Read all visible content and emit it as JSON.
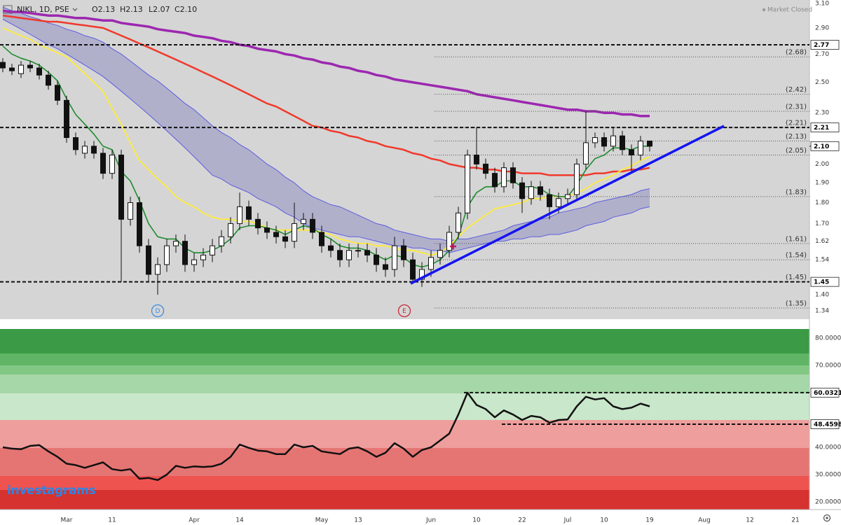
{
  "header": {
    "symbol": "NIKL, 1D, PSE",
    "ohlc": [
      "O2.13",
      "H2.13",
      "L2.07",
      "C2.10"
    ],
    "status": "Market Closed"
  },
  "watermark": "investagrams",
  "markers": [
    "D",
    "E"
  ],
  "chart_data": {
    "type": "candlestick",
    "log_scale": true,
    "categories": [
      null,
      null,
      null,
      null,
      null,
      null,
      null,
      "Mar",
      null,
      null,
      null,
      null,
      "11",
      null,
      null,
      null,
      null,
      null,
      null,
      null,
      null,
      "Apr",
      null,
      null,
      null,
      null,
      "14",
      null,
      null,
      null,
      null,
      null,
      null,
      null,
      null,
      "May",
      null,
      null,
      null,
      "13",
      null,
      null,
      null,
      null,
      null,
      null,
      null,
      "Jun",
      null,
      null,
      null,
      null,
      "10",
      null,
      null,
      null,
      null,
      "22",
      null,
      null,
      null,
      null,
      "Jul",
      null,
      null,
      null,
      "10",
      null,
      null,
      null,
      null,
      "19",
      null,
      null,
      null,
      null,
      null,
      "Aug",
      null,
      null,
      null,
      null,
      "12",
      null,
      null,
      null,
      null,
      "21"
    ],
    "open": [
      2.64,
      2.6,
      2.56,
      2.62,
      2.6,
      2.55,
      2.48,
      2.38,
      2.15,
      2.06,
      2.1,
      2.06,
      1.95,
      2.05,
      1.72,
      1.8,
      1.6,
      1.48,
      1.52,
      1.6,
      1.62,
      1.52,
      1.54,
      1.56,
      1.6,
      1.64,
      1.7,
      1.78,
      1.72,
      1.68,
      1.66,
      1.64,
      1.62,
      1.7,
      1.72,
      1.66,
      1.6,
      1.58,
      1.54,
      1.58,
      1.58,
      1.56,
      1.52,
      1.5,
      1.6,
      1.54,
      1.46,
      1.5,
      1.55,
      1.58,
      1.66,
      1.75,
      2.05,
      2.0,
      1.95,
      1.88,
      1.98,
      1.9,
      1.82,
      1.88,
      1.84,
      1.78,
      1.82,
      1.84,
      2.0,
      2.12,
      2.15,
      2.1,
      2.16,
      2.08,
      2.05,
      2.13,
      null,
      null,
      null,
      null,
      null,
      null,
      null,
      null,
      null,
      null,
      null,
      null,
      null,
      null,
      null,
      null
    ],
    "high": [
      2.67,
      2.63,
      2.65,
      2.65,
      2.63,
      2.58,
      2.51,
      2.41,
      2.18,
      2.13,
      2.13,
      2.09,
      2.08,
      2.08,
      1.83,
      1.83,
      1.63,
      1.55,
      1.63,
      1.65,
      1.65,
      1.57,
      1.59,
      1.63,
      1.67,
      1.73,
      1.85,
      1.81,
      1.75,
      1.71,
      1.69,
      1.67,
      1.8,
      1.75,
      1.75,
      1.69,
      1.63,
      1.61,
      1.61,
      1.61,
      1.61,
      1.59,
      1.55,
      1.64,
      1.63,
      1.57,
      1.53,
      1.58,
      1.61,
      1.69,
      1.78,
      2.08,
      2.21,
      2.03,
      1.98,
      2.01,
      2.01,
      1.93,
      1.91,
      1.91,
      1.87,
      1.85,
      1.87,
      2.03,
      2.31,
      2.18,
      2.18,
      2.21,
      2.19,
      2.11,
      2.16,
      2.13,
      null,
      null,
      null,
      null,
      null,
      null,
      null,
      null,
      null,
      null,
      null,
      null,
      null,
      null,
      null,
      null
    ],
    "low": [
      2.57,
      2.55,
      2.53,
      2.57,
      2.52,
      2.45,
      2.35,
      2.12,
      2.05,
      2.03,
      2.03,
      1.92,
      1.92,
      1.45,
      1.69,
      1.57,
      1.45,
      1.4,
      1.49,
      1.57,
      1.49,
      1.49,
      1.51,
      1.53,
      1.57,
      1.61,
      1.67,
      1.69,
      1.65,
      1.63,
      1.61,
      1.59,
      1.59,
      1.67,
      1.63,
      1.57,
      1.55,
      1.51,
      1.51,
      1.55,
      1.53,
      1.49,
      1.47,
      1.47,
      1.51,
      1.45,
      1.43,
      1.47,
      1.52,
      1.55,
      1.63,
      1.72,
      1.97,
      1.92,
      1.85,
      1.85,
      1.87,
      1.75,
      1.79,
      1.81,
      1.72,
      1.75,
      1.79,
      1.81,
      1.97,
      2.09,
      2.07,
      2.07,
      2.05,
      1.95,
      2.02,
      2.07,
      null,
      null,
      null,
      null,
      null,
      null,
      null,
      null,
      null,
      null,
      null,
      null,
      null,
      null,
      null,
      null
    ],
    "close": [
      2.6,
      2.58,
      2.62,
      2.6,
      2.55,
      2.48,
      2.38,
      2.15,
      2.08,
      2.1,
      2.06,
      1.95,
      2.05,
      1.72,
      1.8,
      1.6,
      1.48,
      1.52,
      1.6,
      1.62,
      1.52,
      1.54,
      1.56,
      1.6,
      1.64,
      1.7,
      1.78,
      1.72,
      1.68,
      1.66,
      1.64,
      1.62,
      1.7,
      1.72,
      1.66,
      1.6,
      1.58,
      1.54,
      1.58,
      1.58,
      1.56,
      1.52,
      1.5,
      1.6,
      1.54,
      1.46,
      1.5,
      1.55,
      1.58,
      1.66,
      1.75,
      2.05,
      2.0,
      1.95,
      1.88,
      1.98,
      1.9,
      1.82,
      1.88,
      1.84,
      1.78,
      1.82,
      1.84,
      2.0,
      2.12,
      2.15,
      2.1,
      2.16,
      2.08,
      2.05,
      2.13,
      2.1,
      null,
      null,
      null,
      null,
      null,
      null,
      null,
      null,
      null,
      null,
      null,
      null,
      null,
      null,
      null,
      null
    ],
    "band": {
      "color": "#5c5ce0",
      "fill": "#a9a9c9",
      "upper": [
        3.07,
        3.04,
        3.02,
        2.99,
        2.97,
        2.94,
        2.92,
        2.89,
        2.87,
        2.84,
        2.82,
        2.79,
        2.74,
        2.7,
        2.65,
        2.6,
        2.55,
        2.51,
        2.46,
        2.41,
        2.36,
        2.32,
        2.27,
        2.22,
        2.18,
        2.15,
        2.11,
        2.08,
        2.04,
        2.0,
        1.97,
        1.93,
        1.9,
        1.86,
        1.83,
        1.81,
        1.79,
        1.78,
        1.76,
        1.74,
        1.72,
        1.7,
        1.69,
        1.67,
        1.66,
        1.65,
        1.64,
        1.63,
        1.63,
        1.62,
        1.63,
        1.63,
        1.64,
        1.65,
        1.66,
        1.67,
        1.69,
        1.7,
        1.71,
        1.72,
        1.73,
        1.75,
        1.76,
        1.77,
        1.78,
        1.8,
        1.81,
        1.82,
        1.83,
        1.84,
        1.86,
        1.87,
        null,
        null,
        null,
        null,
        null,
        null,
        null,
        null,
        null,
        null,
        null,
        null,
        null,
        null,
        null,
        null
      ],
      "lower": [
        2.97,
        2.93,
        2.89,
        2.85,
        2.81,
        2.77,
        2.74,
        2.7,
        2.66,
        2.62,
        2.58,
        2.54,
        2.49,
        2.44,
        2.39,
        2.34,
        2.29,
        2.24,
        2.19,
        2.14,
        2.09,
        2.04,
        1.99,
        1.94,
        1.92,
        1.89,
        1.87,
        1.85,
        1.82,
        1.8,
        1.78,
        1.75,
        1.73,
        1.7,
        1.68,
        1.67,
        1.66,
        1.65,
        1.64,
        1.64,
        1.63,
        1.62,
        1.61,
        1.6,
        1.6,
        1.59,
        1.59,
        1.58,
        1.58,
        1.57,
        1.58,
        1.59,
        1.6,
        1.61,
        1.62,
        1.62,
        1.63,
        1.63,
        1.64,
        1.64,
        1.65,
        1.65,
        1.66,
        1.67,
        1.69,
        1.7,
        1.71,
        1.73,
        1.74,
        1.75,
        1.77,
        1.78,
        null,
        null,
        null,
        null,
        null,
        null,
        null,
        null,
        null,
        null,
        null,
        null,
        null,
        null,
        null,
        null
      ]
    },
    "overlays": [
      {
        "color": "#9c27b0",
        "width": 3.5,
        "values": [
          3.04,
          3.03,
          3.03,
          3.02,
          3.01,
          3.0,
          3.0,
          2.99,
          2.98,
          2.98,
          2.97,
          2.96,
          2.96,
          2.94,
          2.93,
          2.92,
          2.91,
          2.89,
          2.88,
          2.87,
          2.86,
          2.84,
          2.83,
          2.82,
          2.8,
          2.79,
          2.77,
          2.76,
          2.74,
          2.73,
          2.72,
          2.7,
          2.69,
          2.67,
          2.66,
          2.64,
          2.63,
          2.61,
          2.6,
          2.58,
          2.57,
          2.55,
          2.54,
          2.52,
          2.51,
          2.5,
          2.49,
          2.48,
          2.47,
          2.46,
          2.45,
          2.44,
          2.42,
          2.41,
          2.4,
          2.39,
          2.38,
          2.37,
          2.36,
          2.35,
          2.34,
          2.33,
          2.32,
          2.32,
          2.31,
          2.31,
          2.3,
          2.3,
          2.29,
          2.29,
          2.28,
          2.28,
          null,
          null,
          null,
          null,
          null,
          null,
          null,
          null,
          null,
          null,
          null,
          null,
          null,
          null,
          null,
          null
        ]
      },
      {
        "color": "#f0392b",
        "width": 2.5,
        "values": [
          3.0,
          2.99,
          2.98,
          2.97,
          2.96,
          2.95,
          2.95,
          2.94,
          2.93,
          2.92,
          2.91,
          2.9,
          2.87,
          2.84,
          2.81,
          2.78,
          2.75,
          2.72,
          2.69,
          2.66,
          2.63,
          2.6,
          2.57,
          2.54,
          2.51,
          2.48,
          2.45,
          2.42,
          2.39,
          2.36,
          2.34,
          2.31,
          2.28,
          2.25,
          2.22,
          2.21,
          2.19,
          2.18,
          2.16,
          2.15,
          2.13,
          2.12,
          2.1,
          2.09,
          2.08,
          2.06,
          2.05,
          2.03,
          2.02,
          2.0,
          1.99,
          1.98,
          1.98,
          1.97,
          1.97,
          1.96,
          1.96,
          1.95,
          1.95,
          1.95,
          1.94,
          1.94,
          1.94,
          1.94,
          1.94,
          1.95,
          1.95,
          1.96,
          1.96,
          1.97,
          1.97,
          1.98,
          null,
          null,
          null,
          null,
          null,
          null,
          null,
          null,
          null,
          null,
          null,
          null,
          null,
          null,
          null,
          null
        ]
      },
      {
        "color": "#ffeb3b",
        "width": 1.8,
        "values": [
          2.9,
          2.87,
          2.84,
          2.81,
          2.77,
          2.74,
          2.71,
          2.68,
          2.62,
          2.56,
          2.5,
          2.44,
          2.33,
          2.23,
          2.12,
          2.02,
          1.97,
          1.92,
          1.88,
          1.83,
          1.8,
          1.78,
          1.75,
          1.73,
          1.72,
          1.72,
          1.71,
          1.71,
          1.7,
          1.68,
          1.67,
          1.67,
          1.67,
          1.67,
          1.67,
          1.66,
          1.65,
          1.63,
          1.62,
          1.61,
          1.61,
          1.6,
          1.6,
          1.59,
          1.58,
          1.58,
          1.57,
          1.56,
          1.57,
          1.6,
          1.64,
          1.68,
          1.71,
          1.74,
          1.77,
          1.78,
          1.79,
          1.8,
          1.82,
          1.82,
          1.83,
          1.83,
          1.83,
          1.85,
          1.87,
          1.9,
          1.92,
          1.94,
          1.97,
          1.99,
          2.02,
          2.04,
          null,
          null,
          null,
          null,
          null,
          null,
          null,
          null,
          null,
          null,
          null,
          null,
          null,
          null,
          null,
          null
        ]
      },
      {
        "color": "#1e8c2e",
        "width": 1.6,
        "values": [
          2.76,
          2.7,
          2.67,
          2.65,
          2.62,
          2.57,
          2.51,
          2.39,
          2.29,
          2.23,
          2.17,
          2.1,
          2.08,
          1.96,
          1.91,
          1.81,
          1.7,
          1.64,
          1.63,
          1.63,
          1.59,
          1.57,
          1.57,
          1.58,
          1.6,
          1.63,
          1.68,
          1.69,
          1.69,
          1.68,
          1.67,
          1.65,
          1.67,
          1.69,
          1.68,
          1.65,
          1.63,
          1.6,
          1.59,
          1.59,
          1.58,
          1.56,
          1.54,
          1.56,
          1.55,
          1.52,
          1.51,
          1.52,
          1.54,
          1.58,
          1.64,
          1.78,
          1.85,
          1.88,
          1.88,
          1.91,
          1.91,
          1.88,
          1.88,
          1.87,
          1.84,
          1.83,
          1.83,
          1.89,
          1.97,
          2.03,
          2.05,
          2.09,
          2.09,
          2.08,
          2.1,
          2.1,
          null,
          null,
          null,
          null,
          null,
          null,
          null,
          null,
          null,
          null,
          null,
          null,
          null,
          null,
          null,
          null
        ]
      }
    ],
    "ylim": [
      1.312,
      3.13
    ],
    "yticks": [
      {
        "value": 3.1,
        "label": "3.10"
      },
      {
        "value": 2.9,
        "label": "2.90"
      },
      {
        "value": 2.7,
        "label": "2.70"
      },
      {
        "value": 2.5,
        "label": "2.50"
      },
      {
        "value": 2.3,
        "label": "2.30"
      },
      {
        "value": 2.0,
        "label": "2.00"
      },
      {
        "value": 1.9,
        "label": "1.90"
      },
      {
        "value": 1.8,
        "label": "1.80"
      },
      {
        "value": 1.7,
        "label": "1.70"
      },
      1.62,
      1.54,
      {
        "value": 1.4,
        "label": "1.40"
      },
      1.34
    ],
    "hlines": [
      2.77,
      2.21,
      1.45
    ],
    "last_price": {
      "value": 2.1,
      "label": "2.10"
    },
    "fib_levels": [
      {
        "value": 2.68,
        "label": "(2.68)"
      },
      {
        "value": 2.42,
        "label": "(2.42)"
      },
      {
        "value": 2.31,
        "label": "(2.31)"
      },
      {
        "value": 2.21,
        "label": "(2.21)"
      },
      {
        "value": 2.13,
        "label": "(2.13)"
      },
      {
        "value": 2.05,
        "label": "(2.05)"
      },
      {
        "value": 1.83,
        "label": "(1.83)"
      },
      {
        "value": 1.61,
        "label": "(1.61)"
      },
      {
        "value": 1.54,
        "label": "(1.54)"
      },
      {
        "value": 1.45,
        "label": "(1.45)"
      },
      {
        "value": 1.35,
        "label": "(1.35)"
      }
    ],
    "oscillator": {
      "type": "line",
      "color": "#111111",
      "values": [
        40.0,
        39.5,
        39.3,
        40.5,
        40.8,
        38.5,
        36.5,
        34.0,
        33.5,
        32.5,
        33.5,
        34.5,
        32.0,
        31.5,
        32.0,
        28.5,
        28.8,
        28.0,
        30.0,
        33.2,
        32.5,
        33.0,
        32.8,
        33.0,
        34.0,
        36.5,
        41.0,
        39.8,
        38.8,
        38.5,
        37.5,
        37.5,
        41.0,
        40.0,
        40.5,
        38.5,
        38.0,
        37.5,
        39.5,
        40.0,
        38.5,
        36.5,
        38.0,
        41.5,
        39.5,
        36.5,
        39.0,
        40.0,
        42.5,
        45.0,
        52.0,
        60.0,
        55.5,
        54.0,
        51.0,
        53.5,
        52.0,
        50.0,
        51.5,
        51.0,
        49.0,
        50.0,
        50.2,
        55.0,
        58.5,
        57.5,
        58.0,
        55.0,
        54.0,
        54.5,
        56.0,
        55.0,
        null,
        null,
        null,
        null,
        null,
        null,
        null,
        null,
        null,
        null,
        null,
        null,
        null,
        null,
        null,
        null
      ],
      "ylim": [
        17.95,
        83.33
      ],
      "yticks": [
        {
          "value": 80,
          "label": "80.0000"
        },
        {
          "value": 70,
          "label": "70.0000"
        },
        {
          "value": 40,
          "label": "40.0000"
        },
        {
          "value": 30,
          "label": "30.0000"
        },
        {
          "value": 20,
          "label": "20.0000"
        }
      ],
      "hlines": [
        60.0321,
        48.4598
      ]
    }
  }
}
